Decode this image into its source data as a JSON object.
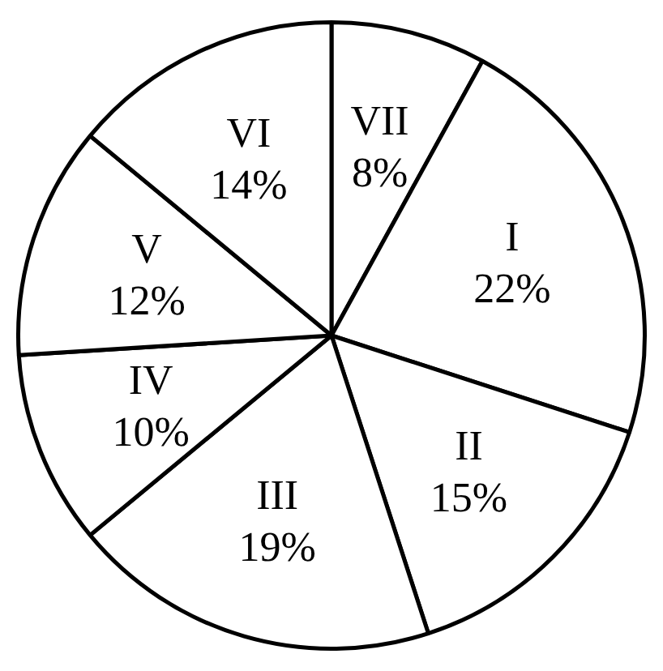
{
  "chart_data": {
    "type": "pie",
    "categories": [
      "VII",
      "I",
      "II",
      "III",
      "IV",
      "V",
      "VI"
    ],
    "values": [
      8,
      22,
      15,
      19,
      10,
      12,
      14
    ],
    "colors": [
      "#ffffff",
      "#ffffff",
      "#ffffff",
      "#ffffff",
      "#ffffff",
      "#ffffff",
      "#ffffff"
    ],
    "value_labels": [
      "8%",
      "22%",
      "15%",
      "19%",
      "10%",
      "12%",
      "14%"
    ],
    "legend": false
  }
}
